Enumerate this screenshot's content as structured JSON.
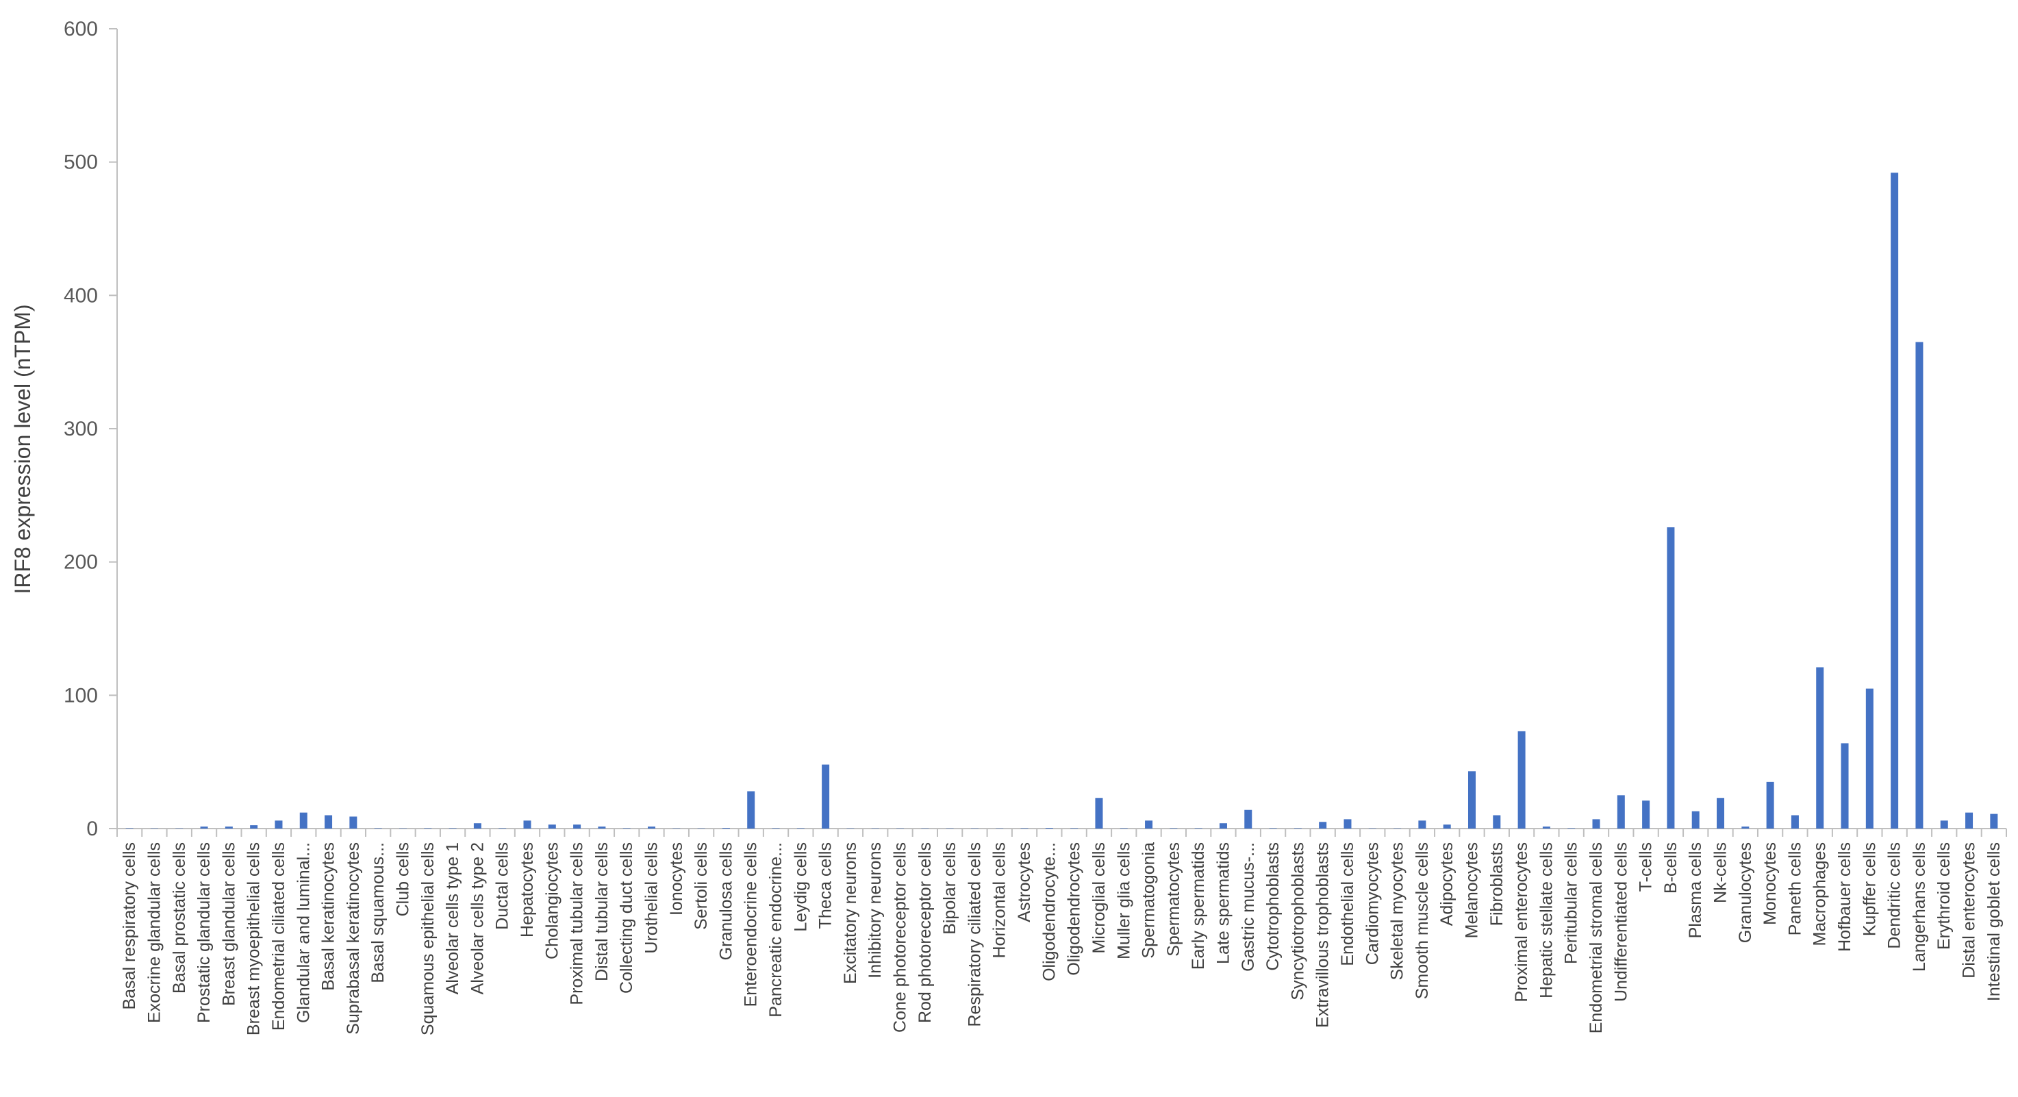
{
  "chart_data": {
    "type": "bar",
    "title": "",
    "xlabel": "",
    "ylabel": "IRF8  expression level (nTPM)",
    "ylim": [
      0,
      600
    ],
    "yticks": [
      "0",
      "100",
      "200",
      "300",
      "400",
      "500",
      "600"
    ],
    "grid": false,
    "legend": "none",
    "bar_color": "#4472C4",
    "categories": [
      "Basal respiratory cells",
      "Exocrine glandular cells",
      "Basal prostatic cells",
      "Prostatic glandular cells",
      "Breast glandular cells",
      "Breast myoepithelial cells",
      "Endometrial ciliated cells",
      "Glandular and luminal...",
      "Basal keratinocytes",
      "Suprabasal keratinocytes",
      "Basal squamous...",
      "Club cells",
      "Squamous epithelial cells",
      "Alveolar cells type 1",
      "Alveolar cells type 2",
      "Ductal cells",
      "Hepatocytes",
      "Cholangiocytes",
      "Proximal tubular cells",
      "Distal tubular cells",
      "Collecting duct cells",
      "Urothelial cells",
      "Ionocytes",
      "Sertoli cells",
      "Granulosa cells",
      "Enteroendocrine cells",
      "Pancreatic endocrine...",
      "Leydig cells",
      "Theca cells",
      "Excitatory neurons",
      "Inhibitory neurons",
      "Cone photoreceptor cells",
      "Rod photoreceptor cells",
      "Bipolar cells",
      "Respiratory ciliated cells",
      "Horizontal cells",
      "Astrocytes",
      "Oligodendrocyte...",
      "Oligodendrocytes",
      "Microglial cells",
      "Muller glia cells",
      "Spermatogonia",
      "Spermatocytes",
      "Early spermatids",
      "Late spermatids",
      "Gastric mucus-...",
      "Cytotrophoblasts",
      "Syncytiotrophoblasts",
      "Extravillous trophoblasts",
      "Endothelial cells",
      "Cardiomyocytes",
      "Skeletal myocytes",
      "Smooth muscle cells",
      "Adipocytes",
      "Melanocytes",
      "Fibroblasts",
      "Proximal enterocytes",
      "Hepatic stellate cells",
      "Peritubular cells",
      "Endometrial stromal cells",
      "Undifferentiated cells",
      "T-cells",
      "B-cells",
      "Plasma cells",
      "Nk-cells",
      "Granulocytes",
      "Monocytes",
      "Paneth cells",
      "Macrophages",
      "Hofbauer cells",
      "Kupffer cells",
      "Dendritic cells",
      "Langerhans cells",
      "Erythroid cells",
      "Distal enterocytes",
      "Intestinal goblet cells"
    ],
    "values": [
      0.3,
      0.2,
      0.2,
      1.5,
      1.5,
      2.5,
      6,
      12,
      10,
      9,
      0.3,
      0.2,
      0.3,
      0.3,
      4,
      0.3,
      6,
      3,
      3,
      1.5,
      0.3,
      1.5,
      0.2,
      0.2,
      0.5,
      28,
      0.3,
      0.3,
      48,
      0.2,
      0.2,
      0.2,
      0.2,
      0.2,
      0.2,
      0.2,
      0.3,
      0.5,
      0.3,
      23,
      0.3,
      6,
      0.3,
      0.3,
      4,
      14,
      0.3,
      0.3,
      5,
      7,
      0.2,
      0.2,
      6,
      3,
      43,
      10,
      73,
      1.5,
      0.3,
      7,
      25,
      21,
      226,
      13,
      23,
      1.5,
      35,
      10,
      121,
      64,
      105,
      492,
      365,
      6,
      12,
      11
    ]
  }
}
